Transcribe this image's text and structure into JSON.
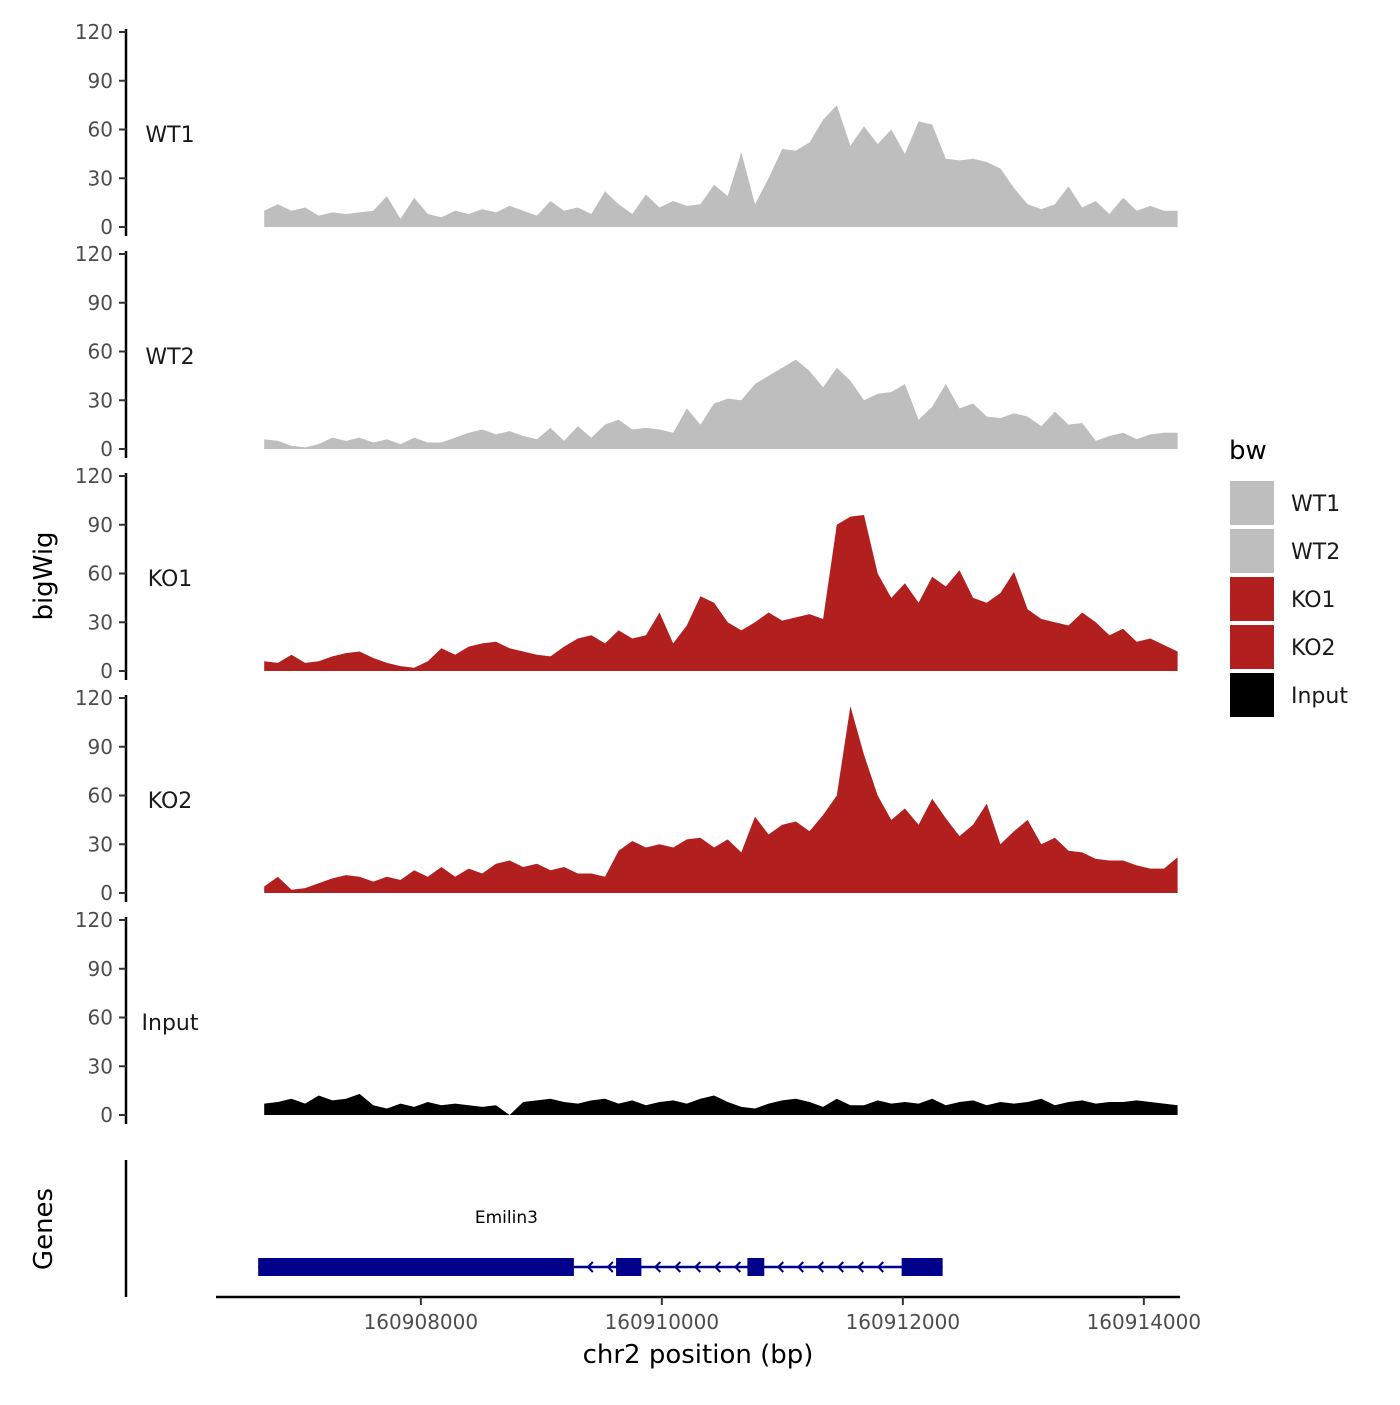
{
  "chart_data": {
    "type": "area",
    "ylabel": "bigWig",
    "xlabel": "chr2 position (bp)",
    "ylim": [
      0,
      120
    ],
    "y_ticks": [
      "0",
      "30",
      "60",
      "90",
      "120"
    ],
    "x_ticks": [
      160908000,
      160910000,
      160912000,
      160914000
    ],
    "x_tick_labels": [
      "160908000",
      "160910000",
      "160912000",
      "160914000"
    ],
    "xlim": [
      160906300,
      160914300
    ],
    "x_start": 160906700,
    "x_end": 160914280,
    "legend_title": "bw",
    "series": [
      {
        "name": "WT1",
        "color": "#bebebe",
        "values": [
          10,
          14,
          10,
          12,
          7,
          9,
          8,
          9,
          10,
          19,
          5,
          18,
          8,
          6,
          10,
          8,
          11,
          9,
          13,
          10,
          7,
          16,
          10,
          12,
          8,
          22,
          14,
          8,
          20,
          12,
          16,
          13,
          14,
          26,
          19,
          46,
          14,
          30,
          48,
          47,
          52,
          66,
          75,
          50,
          62,
          51,
          60,
          45,
          65,
          63,
          42,
          41,
          42,
          40,
          36,
          24,
          14,
          11,
          14,
          25,
          12,
          16,
          8,
          18,
          10,
          13,
          10,
          10
        ]
      },
      {
        "name": "WT2",
        "color": "#bebebe",
        "values": [
          6,
          5,
          2,
          1,
          3,
          7,
          5,
          7,
          4,
          6,
          3,
          7,
          4,
          4,
          7,
          10,
          12,
          9,
          11,
          8,
          6,
          13,
          5,
          14,
          7,
          15,
          18,
          12,
          13,
          12,
          10,
          25,
          15,
          28,
          31,
          30,
          40,
          45,
          50,
          55,
          48,
          38,
          50,
          42,
          30,
          34,
          35,
          40,
          18,
          26,
          40,
          25,
          28,
          20,
          19,
          22,
          20,
          14,
          23,
          15,
          16,
          5,
          8,
          10,
          6,
          9,
          10,
          10
        ]
      },
      {
        "name": "KO1",
        "color": "#b21f1f",
        "values": [
          6,
          5,
          10,
          5,
          6,
          9,
          11,
          12,
          8,
          5,
          3,
          2,
          6,
          14,
          10,
          15,
          17,
          18,
          14,
          12,
          10,
          9,
          15,
          20,
          22,
          17,
          25,
          20,
          22,
          36,
          17,
          28,
          46,
          42,
          30,
          25,
          30,
          36,
          31,
          33,
          35,
          32,
          90,
          95,
          96,
          60,
          45,
          54,
          42,
          58,
          52,
          62,
          45,
          42,
          48,
          61,
          38,
          32,
          30,
          28,
          36,
          30,
          22,
          26,
          18,
          20,
          16,
          12
        ]
      },
      {
        "name": "KO2",
        "color": "#b21f1f",
        "values": [
          4,
          10,
          2,
          3,
          6,
          9,
          11,
          10,
          7,
          10,
          8,
          14,
          10,
          16,
          10,
          15,
          12,
          18,
          20,
          16,
          18,
          14,
          16,
          12,
          12,
          10,
          26,
          32,
          28,
          30,
          28,
          33,
          34,
          28,
          33,
          25,
          47,
          36,
          42,
          44,
          38,
          48,
          60,
          115,
          85,
          60,
          45,
          52,
          42,
          58,
          46,
          35,
          42,
          55,
          30,
          38,
          45,
          30,
          34,
          26,
          25,
          21,
          20,
          20,
          17,
          15,
          15,
          22
        ]
      },
      {
        "name": "Input",
        "color": "#000000",
        "values": [
          7,
          8,
          10,
          7,
          12,
          9,
          10,
          13,
          6,
          4,
          7,
          5,
          8,
          6,
          7,
          6,
          5,
          6,
          0,
          8,
          9,
          10,
          8,
          7,
          9,
          10,
          7,
          9,
          6,
          8,
          9,
          7,
          10,
          12,
          8,
          5,
          4,
          7,
          9,
          10,
          8,
          5,
          10,
          6,
          6,
          9,
          7,
          8,
          7,
          10,
          6,
          8,
          9,
          6,
          8,
          7,
          8,
          10,
          6,
          8,
          9,
          7,
          8,
          8,
          9,
          8,
          7,
          6
        ]
      }
    ],
    "gene_track": {
      "label": "Genes",
      "gene_name": "Emilin3",
      "strand": "-",
      "gene_start": 160906650,
      "gene_end": 160912330,
      "exons": [
        [
          160906650,
          160909270
        ],
        [
          160909620,
          160909830
        ],
        [
          160910710,
          160910850
        ],
        [
          160911990,
          160912330
        ]
      ]
    }
  }
}
